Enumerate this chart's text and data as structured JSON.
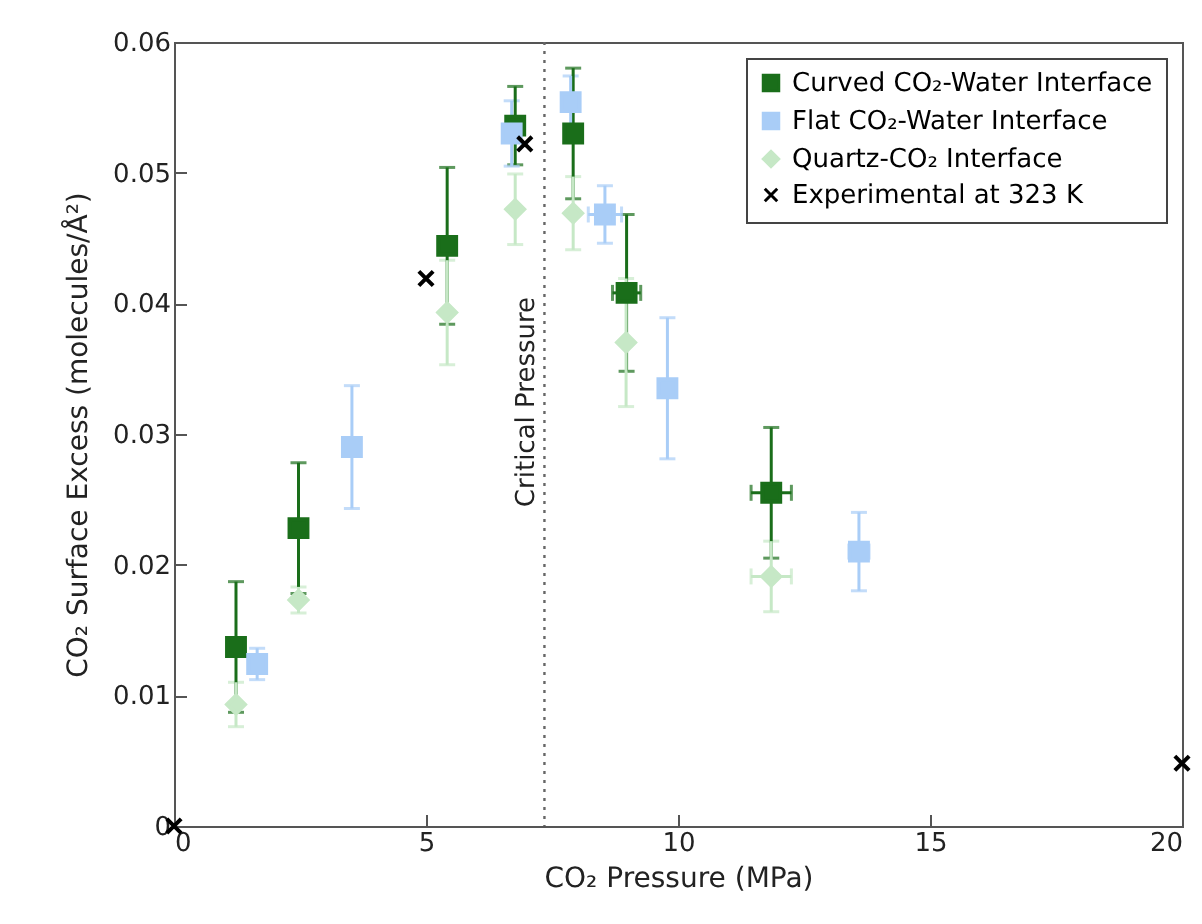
{
  "chart_data": {
    "type": "scatter",
    "xlabel": "CO₂ Pressure (MPa)",
    "ylabel": "CO₂ Surface Excess (molecules/Å²)",
    "xlim": [
      0,
      20
    ],
    "xticks": [
      0,
      5,
      10,
      15,
      20
    ],
    "ylim": [
      0,
      0.06
    ],
    "yticks": [
      0,
      0.01,
      0.02,
      0.03,
      0.04,
      0.05,
      0.06
    ],
    "grid": false,
    "legend": "top right",
    "series": [
      {
        "name": "Curved CO₂-Water Interface",
        "color": "#1a6e1a",
        "marker": "square",
        "x": [
          1.23,
          2.47,
          5.42,
          6.77,
          7.92,
          8.98,
          11.85
        ],
        "values": [
          0.0137,
          0.0228,
          0.0444,
          0.0536,
          0.053,
          0.0408,
          0.0255
        ],
        "errors": [
          0.005,
          0.005,
          0.006,
          0.003,
          0.005,
          0.006,
          0.005
        ],
        "xerrors": [
          null,
          null,
          null,
          null,
          null,
          0.28,
          0.4
        ]
      },
      {
        "name": "Flat CO₂-Water Interface",
        "color": "#a9cdf7",
        "marker": "square",
        "x": [
          1.65,
          3.53,
          6.7,
          7.87,
          8.55,
          9.79,
          13.59
        ],
        "values": [
          0.0124,
          0.029,
          0.053,
          0.0554,
          0.0468,
          0.0335,
          0.021
        ],
        "errors": [
          0.0012,
          0.0047,
          0.0025,
          0.002,
          0.0022,
          0.0054,
          0.003
        ],
        "xerrors": [
          null,
          null,
          null,
          null,
          0.33,
          null,
          0.2
        ]
      },
      {
        "name": "Quartz-CO₂ Interface",
        "color": "#c6e8c6",
        "marker": "diamond",
        "x": [
          1.23,
          2.47,
          5.42,
          6.77,
          7.92,
          8.97,
          11.85
        ],
        "values": [
          0.0093,
          0.0173,
          0.0393,
          0.0472,
          0.0469,
          0.037,
          0.0191
        ],
        "errors": [
          0.0017,
          0.001,
          0.004,
          0.0027,
          0.0028,
          0.0049,
          0.0027
        ],
        "xerrors": [
          null,
          null,
          null,
          null,
          null,
          null,
          0.4
        ]
      },
      {
        "name": "Experimental at 323 K",
        "color": "#000000",
        "marker": "cross",
        "x": [
          0,
          5,
          6.96,
          20
        ],
        "values": [
          0,
          0.0419,
          0.0522,
          0.0048
        ]
      }
    ],
    "ref_lines": [
      {
        "axis": "x",
        "value": 7.35,
        "label": "Critical Pressure",
        "color": "#666666",
        "line_style": "dotted"
      }
    ]
  }
}
